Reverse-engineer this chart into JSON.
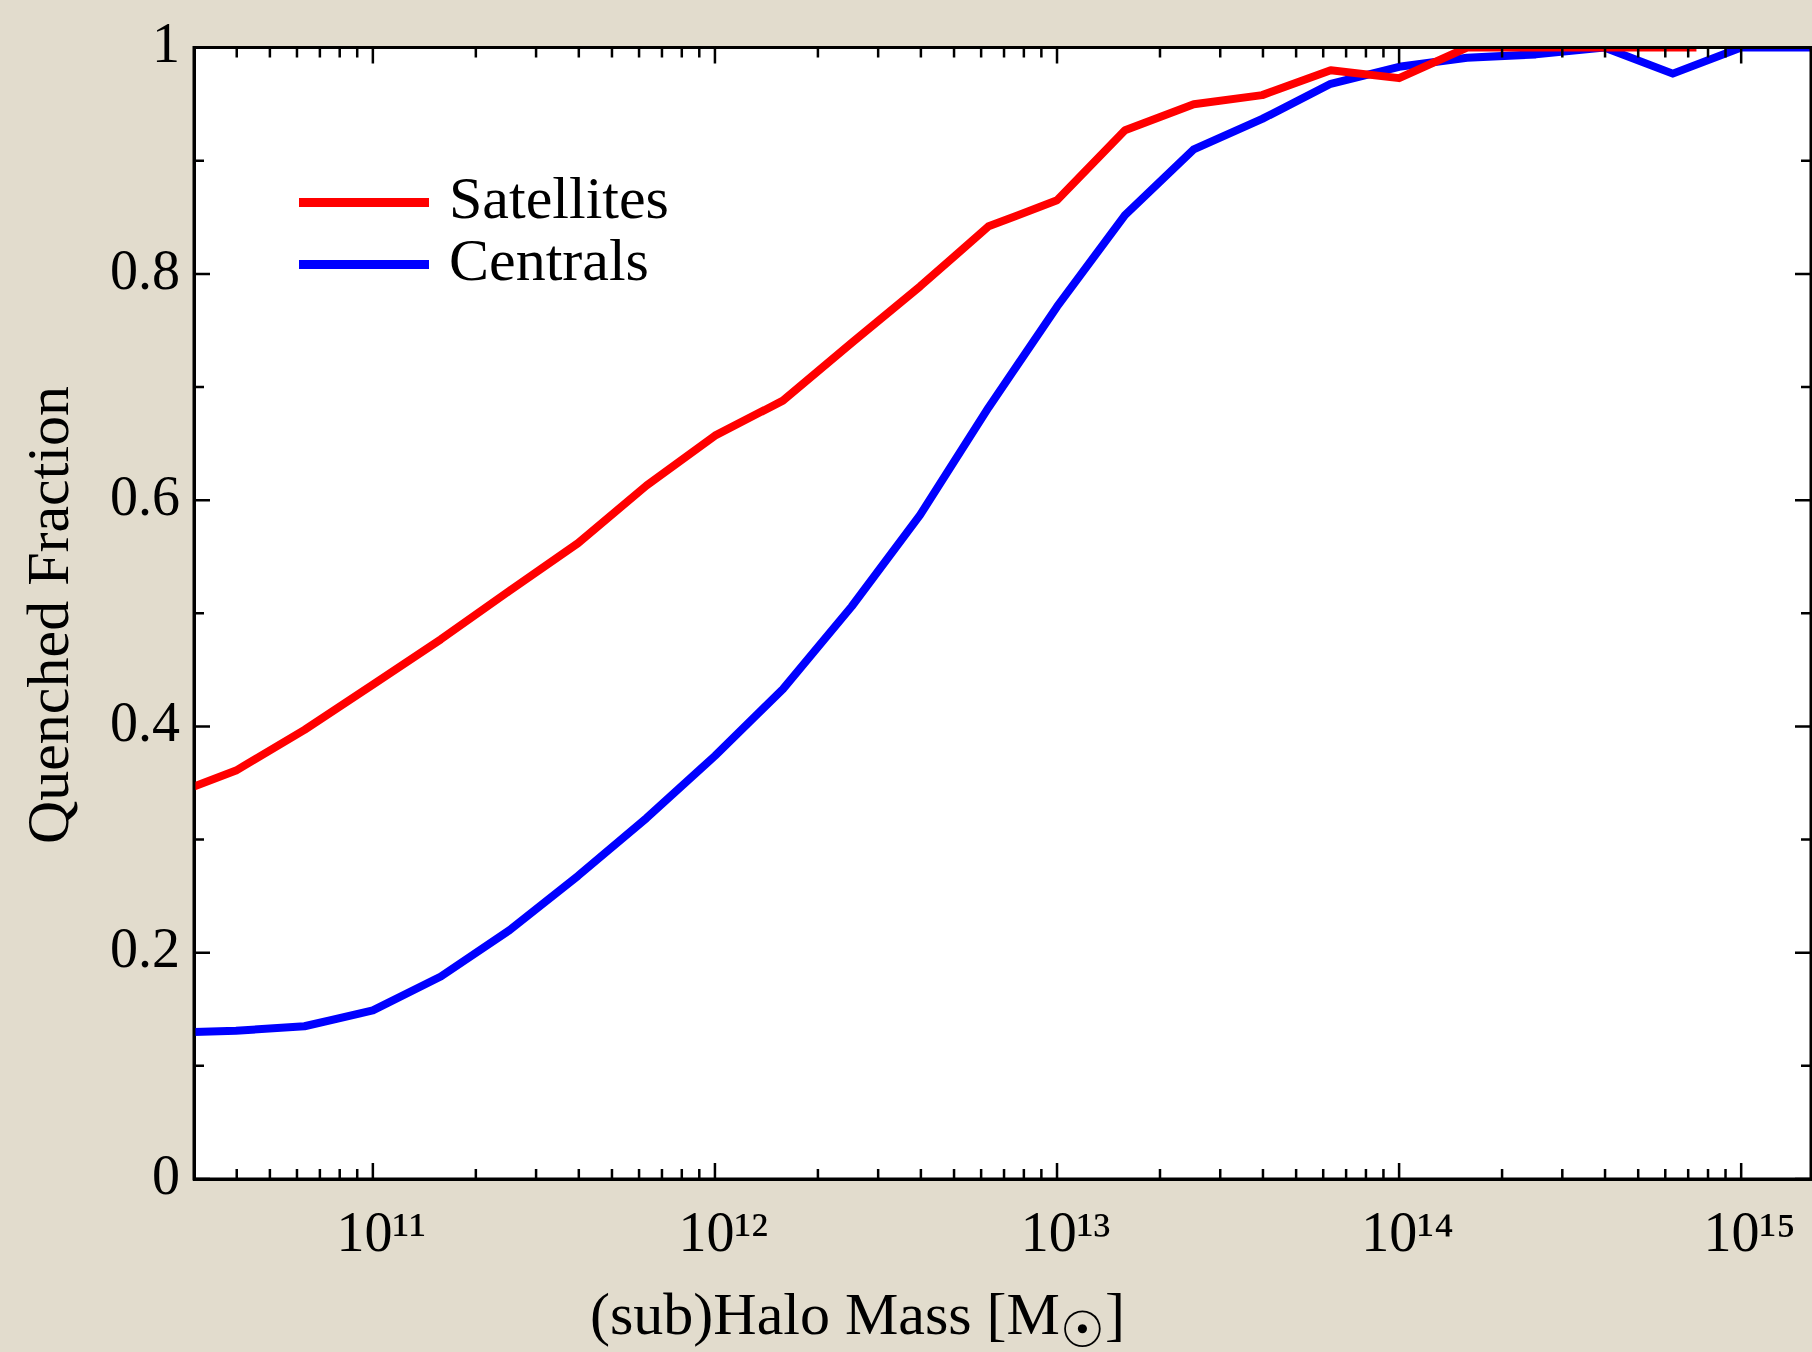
{
  "chart_data": {
    "type": "line",
    "xlabel": "(sub)Halo Mass [M$_{☉}$]",
    "ylabel": "Quenched Fraction",
    "log": "x",
    "grid": false,
    "legend": "top left",
    "marker": "none",
    "line_style": "solid",
    "xlim": [
      30000000000.0,
      1600000000000000.0
    ],
    "ylim": [
      0,
      1
    ],
    "xticks": [
      {
        "value": 40000000000.0,
        "label": null
      },
      {
        "value": 50000000000.0,
        "label": null
      },
      {
        "value": 60000000000.0,
        "label": null
      },
      {
        "value": 70000000000.0,
        "label": null
      },
      {
        "value": 80000000000.0,
        "label": null
      },
      {
        "value": 90000000000.0,
        "label": null
      },
      {
        "value": 100000000000.0,
        "label": "10¹¹"
      },
      {
        "value": 200000000000.0,
        "label": null
      },
      {
        "value": 300000000000.0,
        "label": null
      },
      {
        "value": 400000000000.0,
        "label": null
      },
      {
        "value": 500000000000.0,
        "label": null
      },
      {
        "value": 600000000000.0,
        "label": null
      },
      {
        "value": 700000000000.0,
        "label": null
      },
      {
        "value": 800000000000.0,
        "label": null
      },
      {
        "value": 900000000000.0,
        "label": null
      },
      {
        "value": 1000000000000.0,
        "label": "10¹²"
      },
      {
        "value": 2000000000000.0,
        "label": null
      },
      {
        "value": 3000000000000.0,
        "label": null
      },
      {
        "value": 4000000000000.0,
        "label": null
      },
      {
        "value": 5000000000000.0,
        "label": null
      },
      {
        "value": 6000000000000.0,
        "label": null
      },
      {
        "value": 7000000000000.0,
        "label": null
      },
      {
        "value": 8000000000000.0,
        "label": null
      },
      {
        "value": 9000000000000.0,
        "label": null
      },
      {
        "value": 10000000000000.0,
        "label": "10¹³"
      },
      {
        "value": 20000000000000.0,
        "label": null
      },
      {
        "value": 30000000000000.0,
        "label": null
      },
      {
        "value": 40000000000000.0,
        "label": null
      },
      {
        "value": 50000000000000.0,
        "label": null
      },
      {
        "value": 60000000000000.0,
        "label": null
      },
      {
        "value": 70000000000000.0,
        "label": null
      },
      {
        "value": 80000000000000.0,
        "label": null
      },
      {
        "value": 90000000000000.0,
        "label": null
      },
      {
        "value": 100000000000000.0,
        "label": "10¹⁴"
      },
      {
        "value": 200000000000000.0,
        "label": null
      },
      {
        "value": 300000000000000.0,
        "label": null
      },
      {
        "value": 400000000000000.0,
        "label": null
      },
      {
        "value": 500000000000000.0,
        "label": null
      },
      {
        "value": 600000000000000.0,
        "label": null
      },
      {
        "value": 700000000000000.0,
        "label": null
      },
      {
        "value": 800000000000000.0,
        "label": null
      },
      {
        "value": 900000000000000.0,
        "label": null
      },
      {
        "value": 1000000000000000.0,
        "label": "10¹⁵"
      }
    ],
    "yticks": [
      0,
      {
        "value": 0.1,
        "label": null
      },
      0.2,
      {
        "value": 0.3,
        "label": null
      },
      0.4,
      {
        "value": 0.5,
        "label": null
      },
      0.6,
      {
        "value": 0.7,
        "label": null
      },
      0.8,
      {
        "value": 0.9,
        "label": null
      },
      1
    ],
    "series": [
      {
        "name": "Satellites",
        "color": "#ff0000",
        "x": [
          30000000000.0,
          39800000000.0,
          63100000000.0,
          100000000000.0,
          158000000000.0,
          251000000000.0,
          398000000000.0,
          631000000000.0,
          1000000000000.0,
          1580000000000.0,
          2510000000000.0,
          3980000000000.0,
          6310000000000.0,
          10000000000000.0,
          15800000000000.0,
          25100000000000.0,
          39800000000000.0,
          63100000000000.0,
          100000000000000.0,
          158000000000000.0,
          740000000000000.0
        ],
        "values": [
          0.347,
          0.361,
          0.397,
          0.437,
          0.477,
          0.52,
          0.562,
          0.613,
          0.657,
          0.688,
          0.739,
          0.789,
          0.842,
          0.865,
          0.927,
          0.95,
          0.958,
          0.98,
          0.973,
          1,
          1
        ]
      },
      {
        "name": "Centrals",
        "color": "#0000ff",
        "x": [
          30000000000.0,
          39800000000.0,
          63100000000.0,
          100000000000.0,
          158000000000.0,
          251000000000.0,
          398000000000.0,
          631000000000.0,
          1000000000000.0,
          1580000000000.0,
          2510000000000.0,
          3980000000000.0,
          6310000000000.0,
          10000000000000.0,
          15800000000000.0,
          25100000000000.0,
          39800000000000.0,
          63100000000000.0,
          100000000000000.0,
          158000000000000.0,
          251000000000000.0,
          398000000000000.0,
          631000000000000.0,
          1000000000000000.0,
          1600000000000000.0
        ],
        "values": [
          0.13,
          0.131,
          0.135,
          0.149,
          0.179,
          0.22,
          0.268,
          0.319,
          0.374,
          0.433,
          0.506,
          0.587,
          0.682,
          0.771,
          0.852,
          0.91,
          0.937,
          0.968,
          0.983,
          0.991,
          0.994,
          1,
          0.977,
          1,
          1
        ]
      }
    ]
  }
}
